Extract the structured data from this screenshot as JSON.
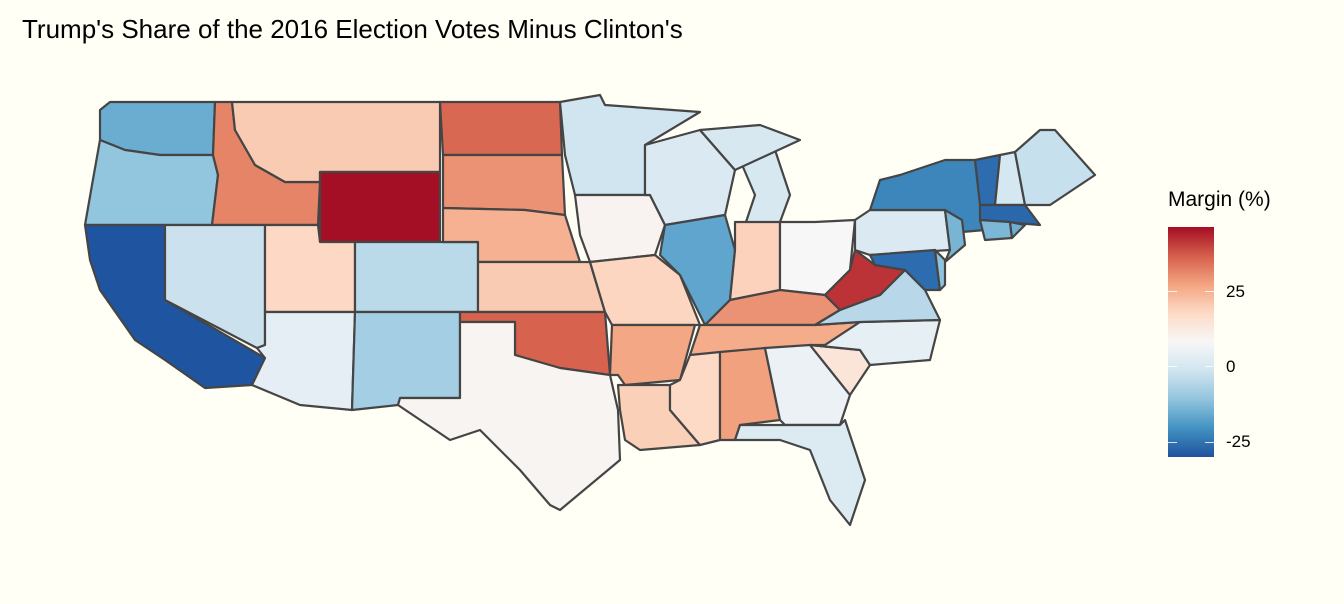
{
  "title": "Trump's Share of the 2016 Election Votes Minus Clinton's",
  "legend": {
    "title": "Margin (%)",
    "ticks": [
      {
        "value": 25,
        "label": "25"
      },
      {
        "value": 0,
        "label": "0"
      },
      {
        "value": -25,
        "label": "-25"
      }
    ],
    "limits": [
      -30.1,
      46.3
    ],
    "palette": [
      "#1f54a0",
      "#4393c3",
      "#92c5de",
      "#d1e5f0",
      "#f7f7f7",
      "#fddbc7",
      "#f4a582",
      "#d6604d",
      "#a50f25"
    ]
  },
  "map_data": {
    "type": "choropleth",
    "region": "contiguous US states",
    "variable": "Trump margin minus Clinton margin (%)",
    "states": {
      "AL": 27.7,
      "AZ": 3.5,
      "AR": 26.9,
      "CA": -30.1,
      "CO": -4.9,
      "CT": -13.6,
      "DE": -11.4,
      "FL": 1.2,
      "GA": 5.1,
      "ID": 31.8,
      "IL": -17.1,
      "IN": 19.2,
      "IA": 9.4,
      "KS": 20.4,
      "KY": 29.8,
      "LA": 19.6,
      "ME": -3.0,
      "MD": -26.4,
      "MA": -27.2,
      "MI": 0.2,
      "MN": -1.5,
      "MS": 17.8,
      "MO": 18.6,
      "MT": 20.4,
      "NE": 25.0,
      "NV": -2.4,
      "NH": -0.4,
      "NJ": -14.1,
      "NM": -8.2,
      "NY": -22.5,
      "NC": 3.7,
      "ND": 35.7,
      "OH": 8.1,
      "OK": 36.4,
      "OR": -11.0,
      "PA": 0.7,
      "RI": -15.5,
      "SC": 14.3,
      "SD": 29.8,
      "TN": 26.0,
      "TX": 9.0,
      "UT": 18.1,
      "VT": -26.4,
      "VA": -5.3,
      "WA": -15.7,
      "WV": 42.1,
      "WI": 0.8,
      "WY": 46.3
    }
  },
  "colors": {
    "background": "#fffff5",
    "border": "#454545"
  }
}
